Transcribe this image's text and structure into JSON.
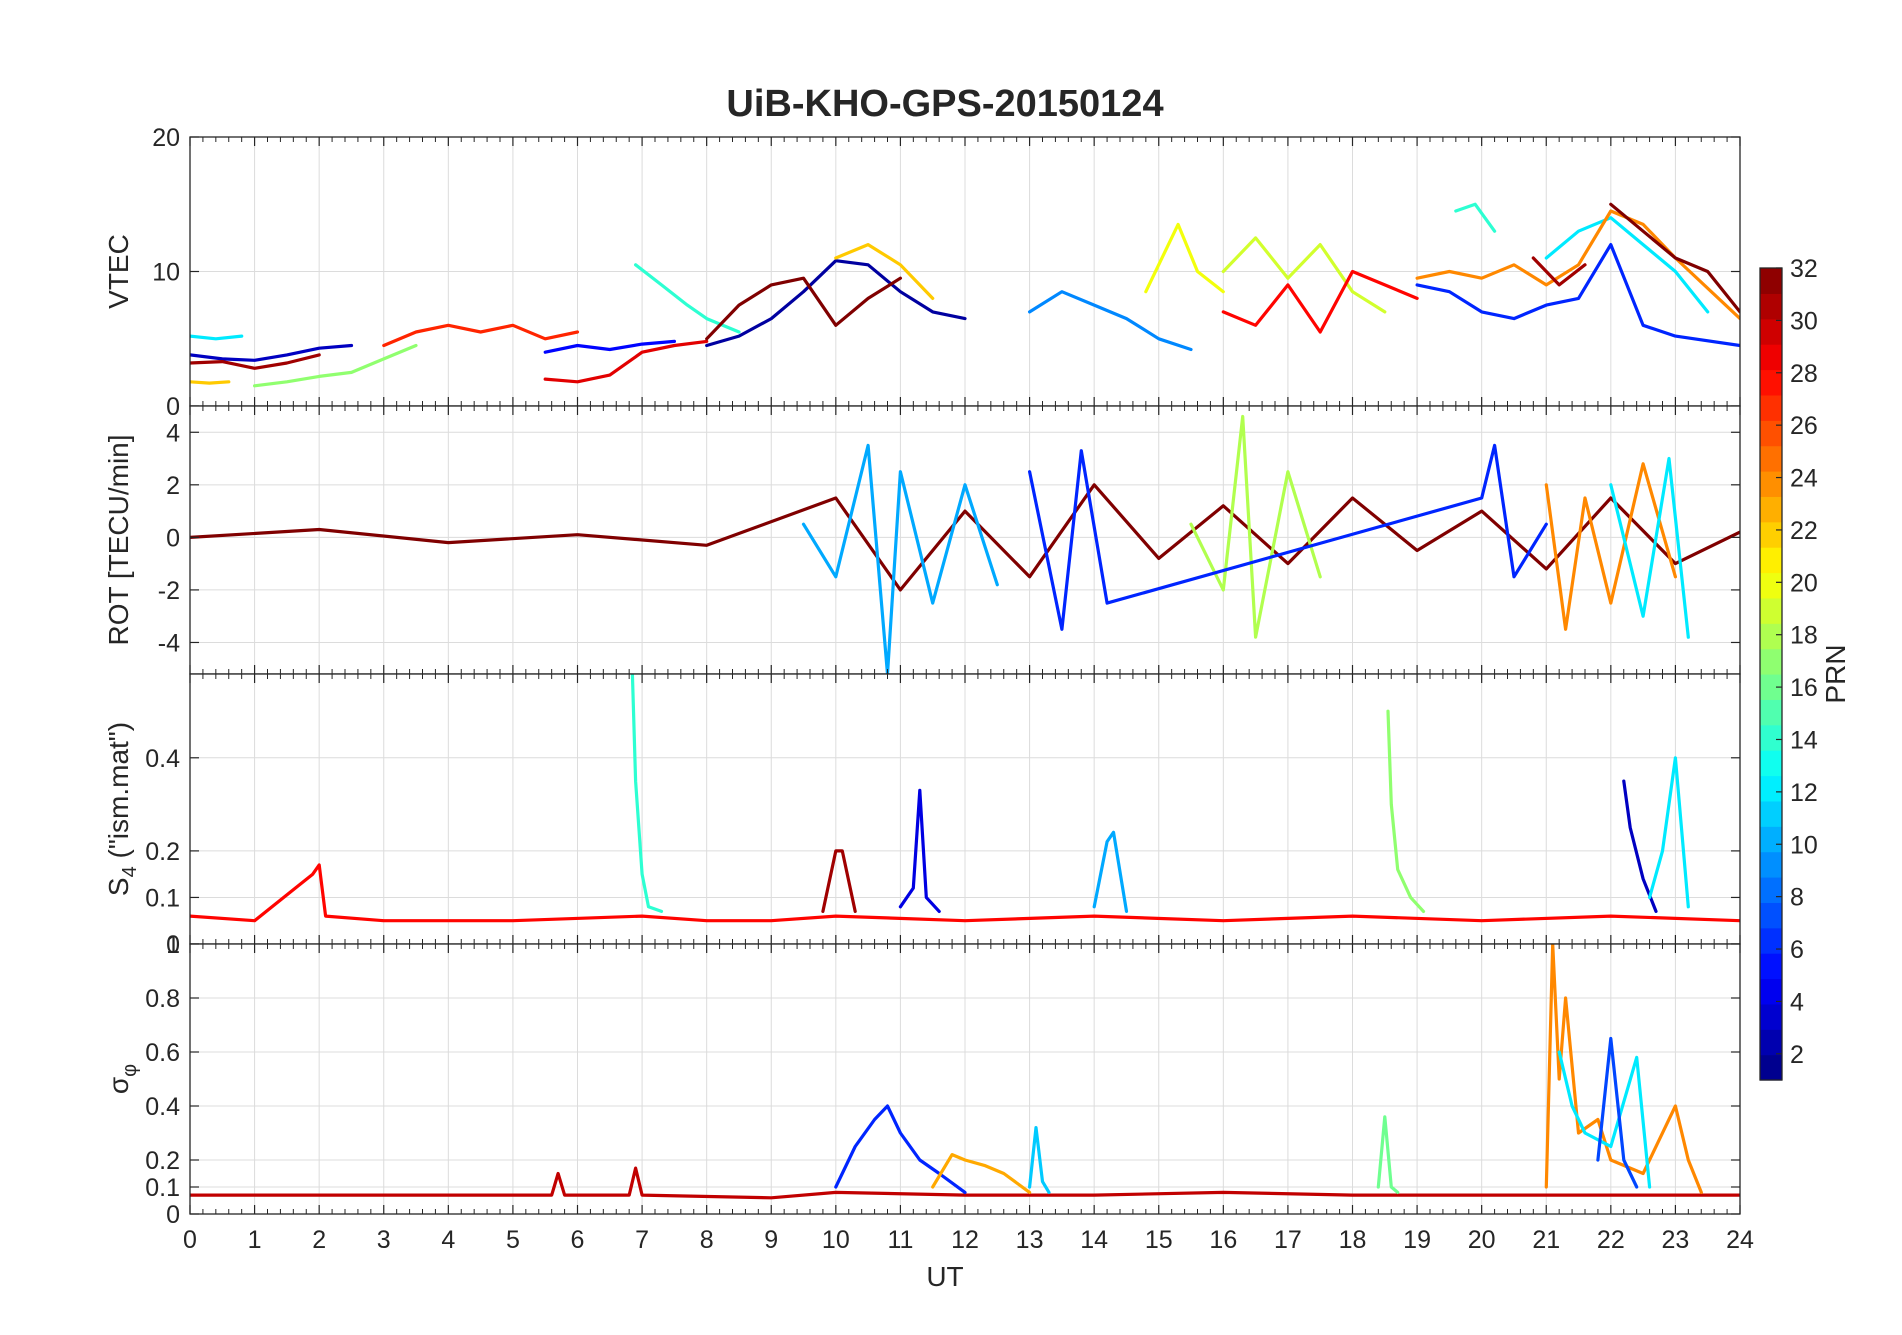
{
  "chart_data": {
    "title": "UiB-KHO-GPS-20150124",
    "type": "line",
    "shared_x": {
      "label": "UT",
      "range": [
        0,
        24
      ],
      "ticks": [
        "0",
        "1",
        "2",
        "3",
        "4",
        "5",
        "6",
        "7",
        "8",
        "9",
        "10",
        "11",
        "12",
        "13",
        "14",
        "15",
        "16",
        "17",
        "18",
        "19",
        "20",
        "21",
        "22",
        "23",
        "24"
      ]
    },
    "panels": [
      {
        "id": "vtec",
        "ylabel": "VTEC",
        "ylim": [
          0,
          20
        ],
        "yticks": [
          0,
          10,
          20
        ],
        "ytick_labels": [
          "0",
          "10",
          "20"
        ],
        "series": [
          {
            "prn": 2,
            "x": [
              8.0,
              8.5,
              9.0,
              9.5,
              10.0,
              10.5,
              11.0,
              11.5,
              12.0
            ],
            "y": [
              4.5,
              5.2,
              6.5,
              8.5,
              10.8,
              10.5,
              8.5,
              7.0,
              6.5
            ]
          },
          {
            "prn": 3,
            "x": [
              0.0,
              0.5,
              1.0,
              1.5,
              2.0,
              2.5
            ],
            "y": [
              3.8,
              3.5,
              3.4,
              3.8,
              4.3,
              4.5
            ]
          },
          {
            "prn": 5,
            "x": [
              5.5,
              6.0,
              6.5,
              7.0,
              7.5
            ],
            "y": [
              4.0,
              4.5,
              4.2,
              4.6,
              4.8
            ]
          },
          {
            "prn": 6,
            "x": [
              19.0,
              19.5,
              20.0,
              20.5,
              21.0,
              21.5,
              22.0,
              22.5,
              23.0,
              24.0
            ],
            "y": [
              9.0,
              8.5,
              7.0,
              6.5,
              7.5,
              8.0,
              12.0,
              6.0,
              5.2,
              4.5
            ]
          },
          {
            "prn": 9,
            "x": [
              13.0,
              13.5,
              14.0,
              14.5,
              15.0,
              15.5
            ],
            "y": [
              7.0,
              8.5,
              7.5,
              6.5,
              5.0,
              4.2
            ]
          },
          {
            "prn": 12,
            "x": [
              0.0,
              0.4,
              0.8
            ],
            "y": [
              5.2,
              5.0,
              5.2
            ]
          },
          {
            "prn": 12,
            "x": [
              21.0,
              21.5,
              22.0,
              22.5,
              23.0,
              23.5
            ],
            "y": [
              11.0,
              13.0,
              14.0,
              12.0,
              10.0,
              7.0
            ]
          },
          {
            "prn": 14,
            "x": [
              6.9,
              7.3,
              7.7,
              8.0,
              8.5
            ],
            "y": [
              10.5,
              9.0,
              7.5,
              6.5,
              5.5
            ]
          },
          {
            "prn": 14,
            "x": [
              19.6,
              19.9,
              20.2
            ],
            "y": [
              14.5,
              15.0,
              13.0
            ]
          },
          {
            "prn": 17,
            "x": [
              1.0,
              1.5,
              2.0,
              2.5,
              3.0,
              3.5
            ],
            "y": [
              1.5,
              1.8,
              2.2,
              2.5,
              3.5,
              4.5
            ]
          },
          {
            "prn": 19,
            "x": [
              16.0,
              16.5,
              17.0,
              17.5,
              18.0,
              18.5
            ],
            "y": [
              10.0,
              12.5,
              9.5,
              12.0,
              8.5,
              7.0
            ]
          },
          {
            "prn": 20,
            "x": [
              14.8,
              15.3,
              15.6,
              16.0
            ],
            "y": [
              8.5,
              13.5,
              10.0,
              8.5
            ]
          },
          {
            "prn": 22,
            "x": [
              10.0,
              10.5,
              11.0,
              11.5
            ],
            "y": [
              11.0,
              12.0,
              10.5,
              8.0
            ]
          },
          {
            "prn": 22,
            "x": [
              0.0,
              0.3,
              0.6
            ],
            "y": [
              1.8,
              1.7,
              1.8
            ]
          },
          {
            "prn": 24,
            "x": [
              19.0,
              19.5,
              20.0,
              20.5,
              21.0,
              21.5,
              22.0,
              22.5,
              23.0,
              24.0
            ],
            "y": [
              9.5,
              10.0,
              9.5,
              10.5,
              9.0,
              10.5,
              14.5,
              13.5,
              11.0,
              6.5
            ]
          },
          {
            "prn": 27,
            "x": [
              3.0,
              3.5,
              4.0,
              4.5,
              5.0,
              5.5,
              6.0
            ],
            "y": [
              4.5,
              5.5,
              6.0,
              5.5,
              6.0,
              5.0,
              5.5
            ]
          },
          {
            "prn": 28,
            "x": [
              16.0,
              16.5,
              17.0,
              17.5,
              18.0,
              18.5,
              19.0
            ],
            "y": [
              7.0,
              6.0,
              9.0,
              5.5,
              10.0,
              9.0,
              8.0
            ]
          },
          {
            "prn": 29,
            "x": [
              5.5,
              6.0,
              6.5,
              7.0,
              7.5,
              8.0
            ],
            "y": [
              2.0,
              1.8,
              2.3,
              4.0,
              4.5,
              4.8
            ]
          },
          {
            "prn": 31,
            "x": [
              0.0,
              0.5,
              1.0,
              1.5,
              2.0
            ],
            "y": [
              3.2,
              3.3,
              2.8,
              3.2,
              3.8
            ]
          },
          {
            "prn": 31,
            "x": [
              20.8,
              21.2,
              21.6
            ],
            "y": [
              11.0,
              9.0,
              10.5
            ]
          },
          {
            "prn": 32,
            "x": [
              8.0,
              8.5,
              9.0,
              9.5,
              10.0,
              10.5,
              11.0
            ],
            "y": [
              5.0,
              7.5,
              9.0,
              9.5,
              6.0,
              8.0,
              9.5
            ]
          },
          {
            "prn": 32,
            "x": [
              22.0,
              22.5,
              23.0,
              23.5,
              24.0
            ],
            "y": [
              15.0,
              13.0,
              11.0,
              10.0,
              7.0
            ]
          }
        ]
      },
      {
        "id": "rot",
        "ylabel": "ROT [TECU/min]",
        "ylim": [
          -5.2,
          5.0
        ],
        "yticks": [
          -4,
          -2,
          0,
          2,
          4
        ],
        "ytick_labels": [
          "-4",
          "-2",
          "0",
          "2",
          "4"
        ],
        "series": [
          {
            "prn": 32,
            "x": [
              0,
              2,
              4,
              6,
              8,
              10,
              11,
              12,
              13,
              14,
              15,
              16,
              17,
              18,
              19,
              20,
              21,
              22,
              23,
              24
            ],
            "y": [
              0,
              0.3,
              -0.2,
              0.1,
              -0.3,
              1.5,
              -2.0,
              1.0,
              -1.5,
              2.0,
              -0.8,
              1.2,
              -1.0,
              1.5,
              -0.5,
              1.0,
              -1.2,
              1.5,
              -1.0,
              0.2
            ]
          },
          {
            "prn": 10,
            "x": [
              9.5,
              10.0,
              10.5,
              10.8,
              11.0,
              11.5,
              12.0,
              12.5
            ],
            "y": [
              0.5,
              -1.5,
              3.5,
              -5.2,
              2.5,
              -2.5,
              2.0,
              -1.8
            ]
          },
          {
            "prn": 18,
            "x": [
              15.5,
              16.0,
              16.3,
              16.5,
              17.0,
              17.5
            ],
            "y": [
              0.5,
              -2.0,
              4.6,
              -3.8,
              2.5,
              -1.5
            ]
          },
          {
            "prn": 6,
            "x": [
              13.0,
              13.5,
              13.8,
              14.2,
              20.0,
              20.2,
              20.5,
              21.0
            ],
            "y": [
              2.5,
              -3.5,
              3.3,
              -2.5,
              1.5,
              3.5,
              -1.5,
              0.5
            ]
          },
          {
            "prn": 24,
            "x": [
              21.0,
              21.3,
              21.6,
              22.0,
              22.5,
              23.0
            ],
            "y": [
              2.0,
              -3.5,
              1.5,
              -2.5,
              2.8,
              -1.5
            ]
          },
          {
            "prn": 12,
            "x": [
              22.0,
              22.5,
              22.9,
              23.2
            ],
            "y": [
              2.0,
              -3.0,
              3.0,
              -3.8
            ]
          }
        ]
      },
      {
        "id": "s4",
        "ylabel": "S4 (\"ism.mat\")",
        "ylabel_main": "S",
        "ylabel_sub": "4",
        "ylabel_rest": " (\"ism.mat\")",
        "ylim": [
          0,
          0.58
        ],
        "yticks": [
          0,
          0.1,
          0.2,
          0.4
        ],
        "ytick_labels": [
          "0",
          "0.1",
          "0.2",
          "0.4"
        ],
        "series": [
          {
            "prn": 28,
            "x": [
              0,
              1,
              1.9,
              2.0,
              2.1,
              3,
              5,
              7,
              8,
              9,
              10,
              12,
              14,
              16,
              18,
              20,
              22,
              24
            ],
            "y": [
              0.06,
              0.05,
              0.15,
              0.17,
              0.06,
              0.05,
              0.05,
              0.06,
              0.05,
              0.05,
              0.06,
              0.05,
              0.06,
              0.05,
              0.06,
              0.05,
              0.06,
              0.05
            ]
          },
          {
            "prn": 14,
            "x": [
              6.85,
              6.9,
              7.0,
              7.1,
              7.3
            ],
            "y": [
              0.58,
              0.35,
              0.15,
              0.08,
              0.07
            ]
          },
          {
            "prn": 17,
            "x": [
              18.55,
              18.6,
              18.7,
              18.9,
              19.1
            ],
            "y": [
              0.5,
              0.3,
              0.16,
              0.1,
              0.07
            ]
          },
          {
            "prn": 4,
            "x": [
              11.0,
              11.2,
              11.3,
              11.4,
              11.6
            ],
            "y": [
              0.08,
              0.12,
              0.33,
              0.1,
              0.07
            ]
          },
          {
            "prn": 31,
            "x": [
              9.8,
              10.0,
              10.1,
              10.3
            ],
            "y": [
              0.07,
              0.2,
              0.2,
              0.07
            ]
          },
          {
            "prn": 10,
            "x": [
              14.0,
              14.2,
              14.3,
              14.5
            ],
            "y": [
              0.08,
              0.22,
              0.24,
              0.07
            ]
          },
          {
            "prn": 3,
            "x": [
              22.2,
              22.3,
              22.5,
              22.7
            ],
            "y": [
              0.35,
              0.25,
              0.14,
              0.07
            ]
          },
          {
            "prn": 12,
            "x": [
              22.6,
              22.8,
              23.0,
              23.2
            ],
            "y": [
              0.1,
              0.2,
              0.4,
              0.08
            ]
          }
        ]
      },
      {
        "id": "sigma_phi",
        "ylabel": "σφ",
        "ylabel_main": "σ",
        "ylabel_sub": "φ",
        "ylim": [
          0,
          1.0
        ],
        "yticks": [
          0,
          0.1,
          0.2,
          0.4,
          0.6,
          0.8,
          1
        ],
        "ytick_labels": [
          "0",
          "0.1",
          "0.2",
          "0.4",
          "0.6",
          "0.8",
          "1"
        ],
        "series": [
          {
            "prn": 30,
            "x": [
              0,
              2,
              4,
              5.6,
              5.7,
              5.8,
              6.8,
              6.9,
              7,
              9,
              10,
              12,
              14,
              16,
              18,
              20,
              24
            ],
            "y": [
              0.07,
              0.07,
              0.07,
              0.07,
              0.15,
              0.07,
              0.07,
              0.17,
              0.07,
              0.06,
              0.08,
              0.07,
              0.07,
              0.08,
              0.07,
              0.07,
              0.07
            ]
          },
          {
            "prn": 6,
            "x": [
              10.0,
              10.3,
              10.6,
              10.8,
              11.0,
              11.3,
              11.6,
              12.0
            ],
            "y": [
              0.1,
              0.25,
              0.35,
              0.4,
              0.3,
              0.2,
              0.15,
              0.08
            ]
          },
          {
            "prn": 23,
            "x": [
              11.5,
              11.8,
              12.0,
              12.3,
              12.6,
              13.0
            ],
            "y": [
              0.1,
              0.22,
              0.2,
              0.18,
              0.15,
              0.08
            ]
          },
          {
            "prn": 24,
            "x": [
              21.0,
              21.1,
              21.2,
              21.3,
              21.5,
              21.8,
              22.0,
              22.5,
              23.0,
              23.2,
              23.4
            ],
            "y": [
              0.1,
              1.0,
              0.5,
              0.8,
              0.3,
              0.35,
              0.2,
              0.15,
              0.4,
              0.2,
              0.08
            ]
          },
          {
            "prn": 12,
            "x": [
              21.2,
              21.4,
              21.6,
              22.0,
              22.4,
              22.6
            ],
            "y": [
              0.6,
              0.4,
              0.3,
              0.25,
              0.58,
              0.1
            ]
          },
          {
            "prn": 7,
            "x": [
              21.8,
              22.0,
              22.2,
              22.4
            ],
            "y": [
              0.2,
              0.65,
              0.2,
              0.1
            ]
          },
          {
            "prn": 16,
            "x": [
              18.4,
              18.5,
              18.6,
              18.7
            ],
            "y": [
              0.1,
              0.36,
              0.1,
              0.08
            ]
          },
          {
            "prn": 11,
            "x": [
              13.0,
              13.1,
              13.2,
              13.3
            ],
            "y": [
              0.1,
              0.32,
              0.12,
              0.08
            ]
          }
        ]
      }
    ],
    "colorbar": {
      "label": "PRN",
      "range": [
        1,
        32
      ],
      "ticks": [
        2,
        4,
        6,
        8,
        10,
        12,
        14,
        16,
        18,
        20,
        22,
        24,
        26,
        28,
        30,
        32
      ],
      "colormap": "jet",
      "levels": 32
    }
  }
}
